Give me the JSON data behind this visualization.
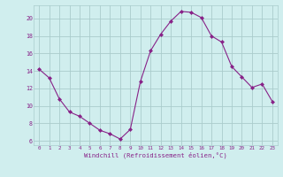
{
  "x": [
    0,
    1,
    2,
    3,
    4,
    5,
    6,
    7,
    8,
    9,
    10,
    11,
    12,
    13,
    14,
    15,
    16,
    17,
    18,
    19,
    20,
    21,
    22,
    23
  ],
  "y": [
    14.2,
    13.2,
    10.8,
    9.3,
    8.8,
    8.0,
    7.2,
    6.8,
    6.2,
    7.3,
    12.8,
    16.3,
    18.2,
    19.7,
    20.8,
    20.7,
    20.1,
    18.0,
    17.3,
    14.5,
    13.3,
    12.1,
    12.5,
    10.5
  ],
  "line_color": "#882288",
  "marker": "D",
  "marker_size": 2,
  "bg_color": "#d0eeee",
  "grid_color": "#aacccc",
  "xlabel": "Windchill (Refroidissement éolien,°C)",
  "xlabel_color": "#882288",
  "tick_color": "#882288",
  "ylabel_ticks": [
    6,
    8,
    10,
    12,
    14,
    16,
    18,
    20
  ],
  "ylim": [
    5.5,
    21.5
  ],
  "xlim": [
    -0.5,
    23.5
  ],
  "xticks": [
    0,
    1,
    2,
    3,
    4,
    5,
    6,
    7,
    8,
    9,
    10,
    11,
    12,
    13,
    14,
    15,
    16,
    17,
    18,
    19,
    20,
    21,
    22,
    23
  ]
}
